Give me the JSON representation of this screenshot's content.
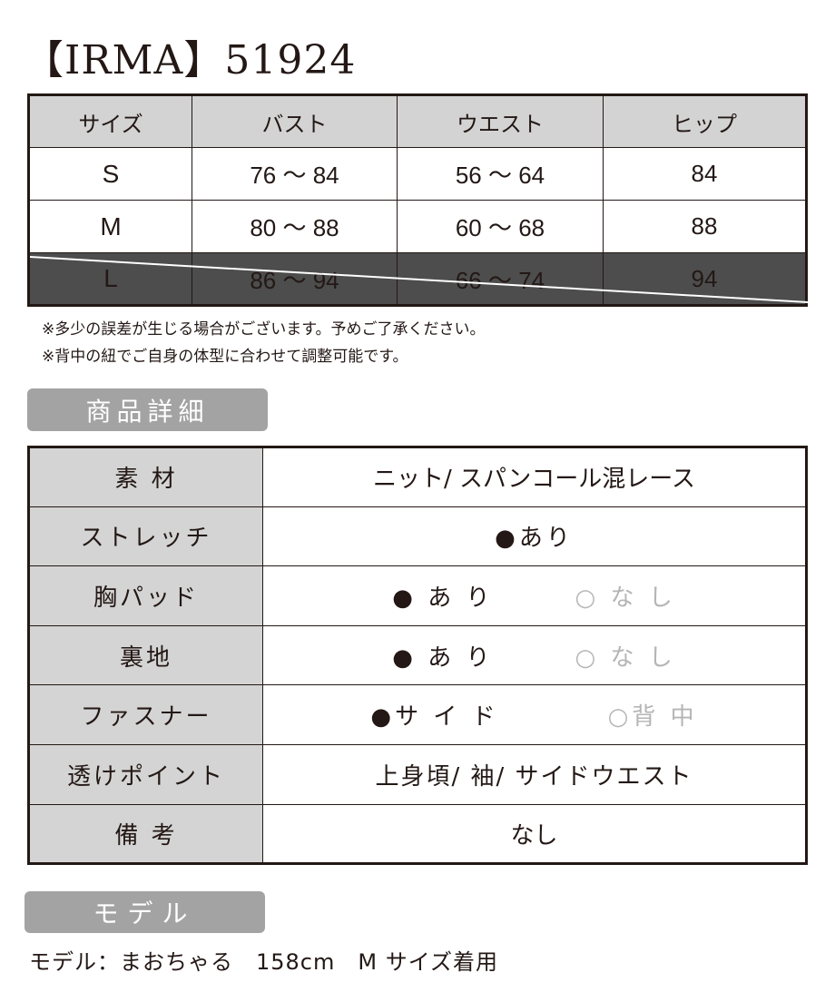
{
  "title": "【IRMA】51924",
  "size_table": {
    "headers": [
      "サイズ",
      "バスト",
      "ウエスト",
      "ヒップ"
    ],
    "rows": [
      {
        "size": "S",
        "bust": "76 ～ 84",
        "waist": "56 ～ 64",
        "hip": "84",
        "sold_out": false
      },
      {
        "size": "M",
        "bust": "80 ～ 88",
        "waist": "60 ～ 68",
        "hip": "88",
        "sold_out": false
      },
      {
        "size": "L",
        "bust": "86 ～ 94",
        "waist": "66 ～ 74",
        "hip": "94",
        "sold_out": true
      }
    ]
  },
  "notes": [
    "※多少の誤差が生じる場合がございます。予めご了承ください。",
    "※背中の紐でご自身の体型に合わせて調整可能です。"
  ],
  "details_heading": "商品詳細",
  "details": [
    {
      "label": "素 材",
      "value": "ニット/ スパンコール混レース"
    },
    {
      "label": "ストレッチ",
      "options": [
        {
          "text": "●あり",
          "selected": true
        }
      ]
    },
    {
      "label": "胸パッド",
      "options": [
        {
          "text": "● あ り",
          "selected": true
        },
        {
          "text": "○ な し",
          "selected": false
        }
      ]
    },
    {
      "label": "裏地",
      "options": [
        {
          "text": "● あ り",
          "selected": true
        },
        {
          "text": "○ な し",
          "selected": false
        }
      ]
    },
    {
      "label": "ファスナー",
      "options": [
        {
          "text": "●サ イ ド",
          "selected": true
        },
        {
          "text": "○背 中",
          "selected": false
        }
      ]
    },
    {
      "label": "透けポイント",
      "value": "上身頃/ 袖/ サイドウエスト"
    },
    {
      "label": "備 考",
      "value": "なし"
    }
  ],
  "model_heading": "モデル",
  "model_text": "モデル：まおちゃる　158cm　M サイズ着用",
  "colors": {
    "header_gray": "#d3d3d3",
    "sold_out": "#4d4d4d",
    "section_gray": "#a3a3a3",
    "inactive": "#b5b5b5"
  }
}
